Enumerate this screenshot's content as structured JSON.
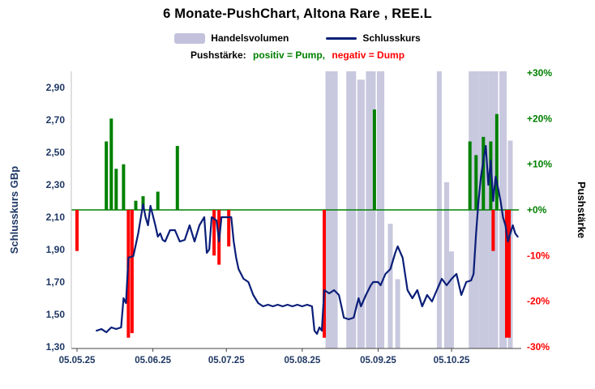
{
  "header": {
    "title": "6 Monate-PushChart,  Altona Rare , REE.L",
    "subtitle_label": "Pushstärke:",
    "subtitle_pump": "positiv = Pump,",
    "subtitle_dump": "negativ = Dump"
  },
  "legend": {
    "volume": "Handelsvolumen",
    "close": "Schlusskurs"
  },
  "colors": {
    "volume": "#c2c2dc",
    "line": "#0a1e78",
    "positive": "#008000",
    "negative": "#ff0000",
    "axis_text": "#1f3864",
    "title": "#000000",
    "background": "#ffffff"
  },
  "chart_data": {
    "type": "line+bar",
    "title": "6 Monate-PushChart,  Altona Rare , REE.L",
    "legend_entries": [
      "Handelsvolumen",
      "Schlusskurs"
    ],
    "annotation": "Pushstärke: positiv = Pump, negativ = Dump",
    "grid": false,
    "y_left": {
      "label": "Schlusskurs GBp",
      "min": 1.3,
      "max": 2.9,
      "ticks": [
        {
          "label": "2,90",
          "value": 2.9
        },
        {
          "label": "2,70",
          "value": 2.7
        },
        {
          "label": "2,50",
          "value": 2.5
        },
        {
          "label": "2,30",
          "value": 2.3
        },
        {
          "label": "2,10",
          "value": 2.1
        },
        {
          "label": "1,90",
          "value": 1.9
        },
        {
          "label": "1,70",
          "value": 1.7
        },
        {
          "label": "1,50",
          "value": 1.5
        },
        {
          "label": "1,30",
          "value": 1.3
        }
      ]
    },
    "y_right": {
      "label": "Pushstärke",
      "min": -30,
      "max": 30,
      "ticks": [
        {
          "label": "+30%",
          "value": 30
        },
        {
          "label": "+20%",
          "value": 20
        },
        {
          "label": "+10%",
          "value": 10
        },
        {
          "label": "+0%",
          "value": 0
        },
        {
          "label": "-10%",
          "value": -10
        },
        {
          "label": "-20%",
          "value": -20
        },
        {
          "label": "-30%",
          "value": -30
        }
      ]
    },
    "x_axis": {
      "days_total": 180,
      "ticks": [
        {
          "label": "05.05.25",
          "d": 0
        },
        {
          "label": "05.06.25",
          "d": 31
        },
        {
          "label": "05.07.25",
          "d": 61
        },
        {
          "label": "05.08.25",
          "d": 92
        },
        {
          "label": "05.09.25",
          "d": 123
        },
        {
          "label": "05.10.25",
          "d": 153
        }
      ]
    },
    "price_line": {
      "name": "Schlusskurs",
      "unit": "GBp",
      "points": [
        [
          8,
          1.4
        ],
        [
          10,
          1.41
        ],
        [
          12,
          1.39
        ],
        [
          14,
          1.42
        ],
        [
          16,
          1.41
        ],
        [
          18,
          1.42
        ],
        [
          19,
          1.6
        ],
        [
          20,
          1.57
        ],
        [
          21,
          1.85
        ],
        [
          23,
          1.86
        ],
        [
          25,
          2.0
        ],
        [
          27,
          2.18
        ],
        [
          28,
          2.1
        ],
        [
          29,
          2.05
        ],
        [
          30,
          2.17
        ],
        [
          32,
          2.05
        ],
        [
          33,
          1.98
        ],
        [
          34,
          2.0
        ],
        [
          35,
          1.96
        ],
        [
          36,
          1.95
        ],
        [
          38,
          2.02
        ],
        [
          40,
          2.02
        ],
        [
          42,
          1.95
        ],
        [
          44,
          1.96
        ],
        [
          46,
          2.05
        ],
        [
          48,
          1.95
        ],
        [
          50,
          2.05
        ],
        [
          52,
          2.1
        ],
        [
          53,
          1.88
        ],
        [
          54,
          1.9
        ],
        [
          55,
          2.1
        ],
        [
          57,
          2.08
        ],
        [
          58,
          1.95
        ],
        [
          59,
          2.1
        ],
        [
          61,
          2.1
        ],
        [
          63,
          2.1
        ],
        [
          64,
          1.95
        ],
        [
          65,
          1.85
        ],
        [
          66,
          1.78
        ],
        [
          68,
          1.72
        ],
        [
          70,
          1.7
        ],
        [
          72,
          1.62
        ],
        [
          74,
          1.57
        ],
        [
          76,
          1.55
        ],
        [
          78,
          1.56
        ],
        [
          80,
          1.55
        ],
        [
          82,
          1.56
        ],
        [
          84,
          1.55
        ],
        [
          86,
          1.56
        ],
        [
          88,
          1.55
        ],
        [
          90,
          1.56
        ],
        [
          92,
          1.55
        ],
        [
          94,
          1.56
        ],
        [
          96,
          1.55
        ],
        [
          97,
          1.4
        ],
        [
          98,
          1.38
        ],
        [
          99,
          1.42
        ],
        [
          100,
          1.4
        ],
        [
          101,
          1.65
        ],
        [
          103,
          1.63
        ],
        [
          105,
          1.65
        ],
        [
          107,
          1.62
        ],
        [
          108,
          1.55
        ],
        [
          109,
          1.48
        ],
        [
          111,
          1.47
        ],
        [
          113,
          1.48
        ],
        [
          115,
          1.6
        ],
        [
          116,
          1.55
        ],
        [
          118,
          1.62
        ],
        [
          120,
          1.68
        ],
        [
          121,
          1.7
        ],
        [
          123,
          1.7
        ],
        [
          124,
          1.68
        ],
        [
          126,
          1.75
        ],
        [
          128,
          1.78
        ],
        [
          130,
          1.88
        ],
        [
          131,
          1.92
        ],
        [
          133,
          1.85
        ],
        [
          134,
          1.75
        ],
        [
          135,
          1.65
        ],
        [
          137,
          1.6
        ],
        [
          139,
          1.65
        ],
        [
          141,
          1.55
        ],
        [
          143,
          1.62
        ],
        [
          145,
          1.58
        ],
        [
          147,
          1.65
        ],
        [
          149,
          1.72
        ],
        [
          151,
          1.68
        ],
        [
          153,
          1.72
        ],
        [
          155,
          1.75
        ],
        [
          157,
          1.62
        ],
        [
          159,
          1.7
        ],
        [
          161,
          1.71
        ],
        [
          162,
          1.75
        ],
        [
          163,
          2.0
        ],
        [
          164,
          2.2
        ],
        [
          165,
          2.35
        ],
        [
          166,
          2.45
        ],
        [
          167,
          2.54
        ],
        [
          168,
          2.3
        ],
        [
          169,
          2.45
        ],
        [
          170,
          2.2
        ],
        [
          171,
          2.35
        ],
        [
          172,
          2.28
        ],
        [
          173,
          2.2
        ],
        [
          174,
          2.1
        ],
        [
          175,
          2.05
        ],
        [
          176,
          1.95
        ],
        [
          177,
          2.0
        ],
        [
          178,
          2.05
        ],
        [
          179,
          2.0
        ],
        [
          180,
          1.98
        ]
      ]
    },
    "push_bars": {
      "unit": "%",
      "positive": [
        {
          "d": 12,
          "v": 15
        },
        {
          "d": 14,
          "v": 20
        },
        {
          "d": 16,
          "v": 9
        },
        {
          "d": 19,
          "v": 10
        },
        {
          "d": 24,
          "v": 2
        },
        {
          "d": 27,
          "v": 3
        },
        {
          "d": 33,
          "v": 4
        },
        {
          "d": 41,
          "v": 14
        },
        {
          "d": 121.5,
          "v": 22
        },
        {
          "d": 160.5,
          "v": 15
        },
        {
          "d": 163,
          "v": 12
        },
        {
          "d": 166,
          "v": 16
        },
        {
          "d": 169,
          "v": 15
        },
        {
          "d": 171.5,
          "v": 21
        }
      ],
      "negative": [
        {
          "d": 0,
          "v": -9
        },
        {
          "d": 21,
          "v": -28
        },
        {
          "d": 22.5,
          "v": -27
        },
        {
          "d": 56,
          "v": -10
        },
        {
          "d": 58,
          "v": -12
        },
        {
          "d": 62,
          "v": -8
        },
        {
          "d": 101,
          "v": -28
        },
        {
          "d": 170,
          "v": -9
        },
        {
          "d": 176,
          "v": -28,
          "w": 7
        }
      ]
    },
    "volume_bars": [
      {
        "d": 104,
        "wd": 5,
        "h": 1.0
      },
      {
        "d": 112,
        "wd": 4,
        "h": 1.0
      },
      {
        "d": 116,
        "wd": 3,
        "h": 0.97
      },
      {
        "d": 120,
        "wd": 4,
        "h": 1.0
      },
      {
        "d": 124,
        "wd": 3,
        "h": 1.0
      },
      {
        "d": 128,
        "wd": 2,
        "h": 0.45
      },
      {
        "d": 131,
        "wd": 2,
        "h": 0.25
      },
      {
        "d": 148,
        "wd": 2,
        "h": 1.0
      },
      {
        "d": 151,
        "wd": 2,
        "h": 0.6
      },
      {
        "d": 153,
        "wd": 2,
        "h": 0.35
      },
      {
        "d": 162,
        "wd": 4,
        "h": 1.0
      },
      {
        "d": 166,
        "wd": 4,
        "h": 1.0
      },
      {
        "d": 170,
        "wd": 4,
        "h": 1.0
      },
      {
        "d": 174,
        "wd": 3,
        "h": 1.0
      },
      {
        "d": 177,
        "wd": 2,
        "h": 0.75
      }
    ]
  }
}
